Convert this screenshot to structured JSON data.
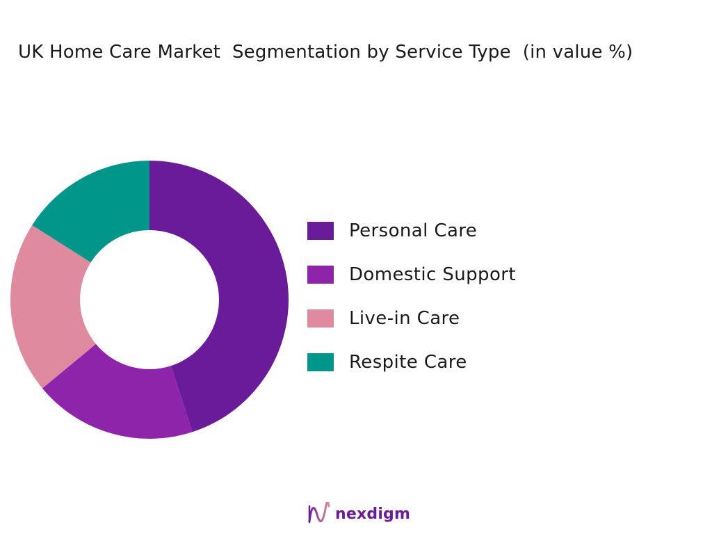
{
  "chart_data": {
    "type": "pie",
    "title": "UK Home Care Market  Segmentation by Service Type  (in value %)",
    "categories": [
      "Personal Care",
      "Domestic Support",
      "Live-in Care",
      "Respite Care"
    ],
    "values": [
      45,
      19,
      20,
      16
    ],
    "colors": [
      "#6a1b9a",
      "#8e24aa",
      "#e08aa0",
      "#00978a"
    ],
    "donut": true,
    "legend_position": "right"
  },
  "brand": {
    "name": "nexdigm",
    "logo_icon": "nexdigm-wave-logo-icon"
  }
}
